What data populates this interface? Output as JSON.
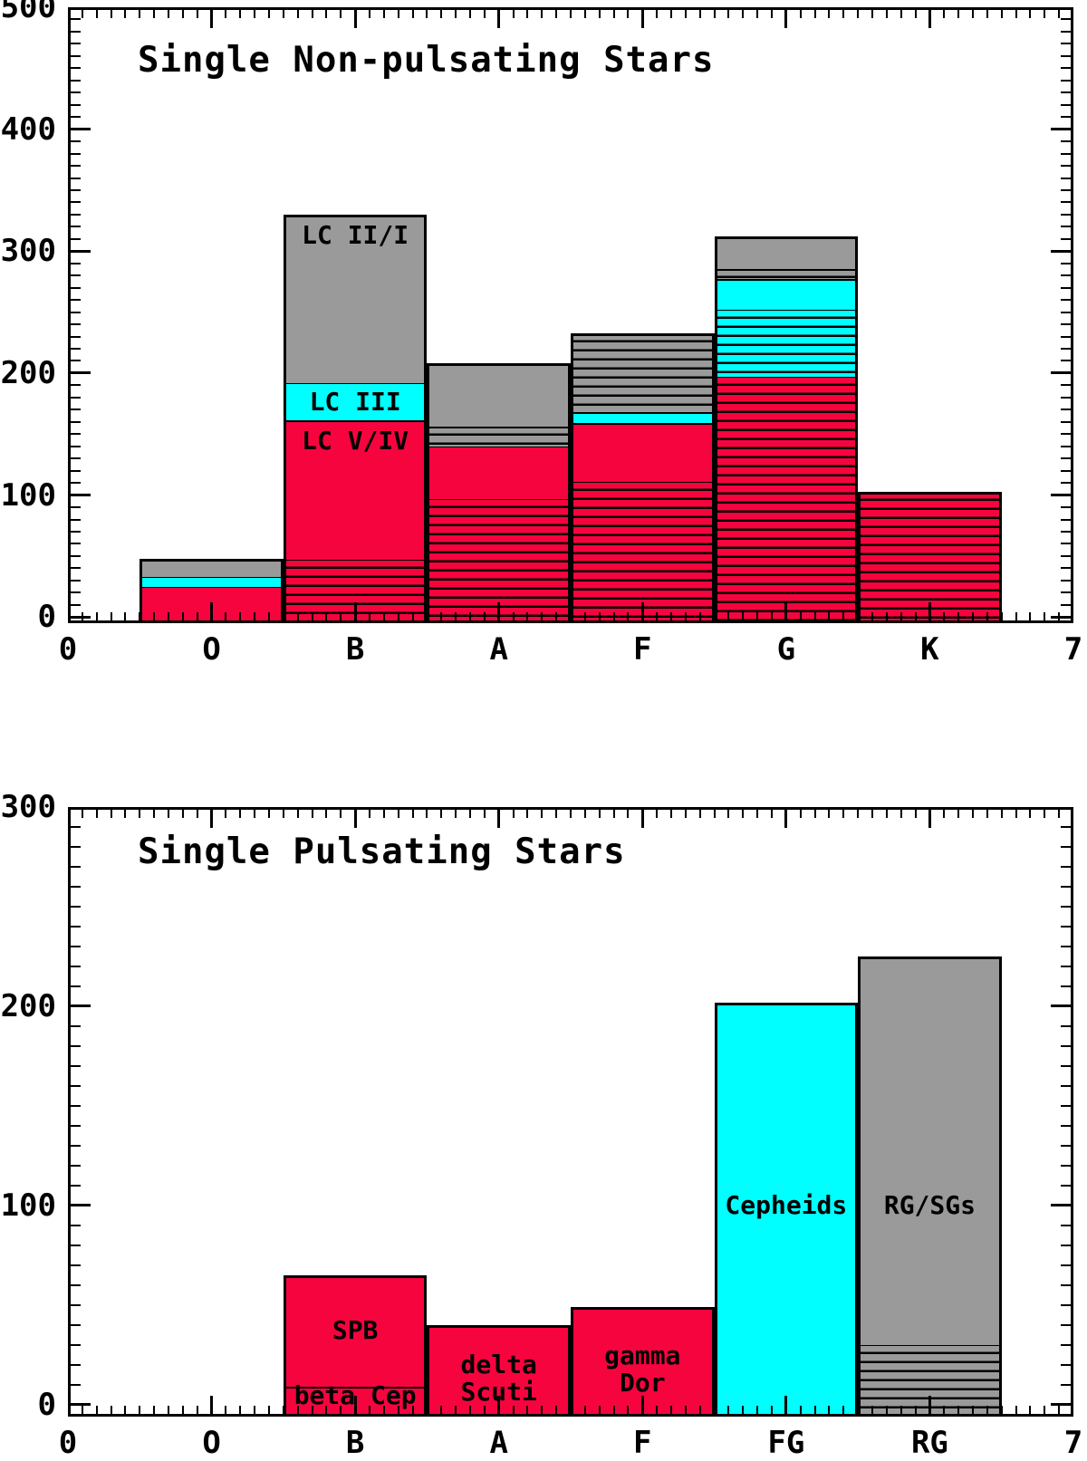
{
  "colors": {
    "red": "#F6043E",
    "cyan": "#00FFFF",
    "gray": "#9A9A9A",
    "line": "#000000",
    "background": "#FFFFFF"
  },
  "chart_data": [
    {
      "type": "bar",
      "stacked": true,
      "title": "Single Non-pulsating Stars",
      "xlabel": "",
      "ylabel": "",
      "xlim": [
        0,
        7
      ],
      "ylim": [
        0,
        500
      ],
      "grid": false,
      "y_major_ticks": [
        0,
        100,
        200,
        300,
        400,
        500
      ],
      "y_minor_step": 10,
      "x_minor_step": 0.1,
      "x_tick_labels": [
        {
          "pos": 0,
          "label": "0"
        },
        {
          "pos": 1,
          "label": "O"
        },
        {
          "pos": 2,
          "label": "B"
        },
        {
          "pos": 3,
          "label": "A"
        },
        {
          "pos": 4,
          "label": "F"
        },
        {
          "pos": 5,
          "label": "G"
        },
        {
          "pos": 6,
          "label": "K"
        },
        {
          "pos": 7,
          "label": "7"
        }
      ],
      "bars": [
        {
          "category": "O",
          "pos": 1,
          "total": 48,
          "segments": [
            {
              "name": "LC V/IV",
              "color": "red",
              "hatched": false,
              "value": 25
            },
            {
              "name": "LC III",
              "color": "cyan",
              "hatched": false,
              "value": 8
            },
            {
              "name": "LC II/I",
              "color": "gray",
              "hatched": false,
              "value": 15
            }
          ]
        },
        {
          "category": "B",
          "pos": 2,
          "total": 330,
          "segments": [
            {
              "name": "LC V/IV hatched",
              "color": "red",
              "hatched": true,
              "value": 47
            },
            {
              "name": "LC V/IV",
              "color": "red",
              "hatched": false,
              "value": 114,
              "label": "LC V/IV",
              "label_mode": "top"
            },
            {
              "name": "LC III",
              "color": "cyan",
              "hatched": false,
              "value": 31,
              "label": "LC III",
              "label_mode": "middle"
            },
            {
              "name": "LC II/I",
              "color": "gray",
              "hatched": false,
              "value": 138,
              "label": "LC II/I",
              "label_mode": "top"
            }
          ]
        },
        {
          "category": "A",
          "pos": 3,
          "total": 208,
          "segments": [
            {
              "name": "LC V/IV hatched",
              "color": "red",
              "hatched": true,
              "value": 97
            },
            {
              "name": "LC V/IV",
              "color": "red",
              "hatched": false,
              "value": 43
            },
            {
              "name": "LC II/I hatched",
              "color": "gray",
              "hatched": true,
              "value": 16
            },
            {
              "name": "LC II/I",
              "color": "gray",
              "hatched": false,
              "value": 52
            }
          ]
        },
        {
          "category": "F",
          "pos": 4,
          "total": 233,
          "segments": [
            {
              "name": "LC V/IV hatched",
              "color": "red",
              "hatched": true,
              "value": 111
            },
            {
              "name": "LC V/IV",
              "color": "red",
              "hatched": false,
              "value": 48
            },
            {
              "name": "LC III",
              "color": "cyan",
              "hatched": false,
              "value": 9
            },
            {
              "name": "LC II/I hatched",
              "color": "gray",
              "hatched": true,
              "value": 65
            }
          ]
        },
        {
          "category": "G",
          "pos": 5,
          "total": 312,
          "segments": [
            {
              "name": "LC V/IV hatched",
              "color": "red",
              "hatched": true,
              "value": 197
            },
            {
              "name": "LC III hatched",
              "color": "cyan",
              "hatched": true,
              "value": 55
            },
            {
              "name": "LC III",
              "color": "cyan",
              "hatched": false,
              "value": 25
            },
            {
              "name": "LC II/I hatched",
              "color": "gray",
              "hatched": true,
              "value": 8
            },
            {
              "name": "LC II/I",
              "color": "gray",
              "hatched": false,
              "value": 27
            }
          ]
        },
        {
          "category": "K",
          "pos": 6,
          "total": 103,
          "segments": [
            {
              "name": "LC V/IV hatched",
              "color": "red",
              "hatched": true,
              "value": 103
            }
          ]
        }
      ]
    },
    {
      "type": "bar",
      "stacked": true,
      "title": "Single Pulsating Stars",
      "xlabel": "",
      "ylabel": "",
      "xlim": [
        0,
        7
      ],
      "ylim": [
        0,
        300
      ],
      "grid": false,
      "y_major_ticks": [
        0,
        100,
        200,
        300
      ],
      "y_minor_step": 10,
      "x_minor_step": 0.1,
      "x_tick_labels": [
        {
          "pos": 0,
          "label": "0"
        },
        {
          "pos": 1,
          "label": "O"
        },
        {
          "pos": 2,
          "label": "B"
        },
        {
          "pos": 3,
          "label": "A"
        },
        {
          "pos": 4,
          "label": "F"
        },
        {
          "pos": 5,
          "label": "FG"
        },
        {
          "pos": 6,
          "label": "RG"
        },
        {
          "pos": 7,
          "label": "7"
        }
      ],
      "bars": [
        {
          "category": "B",
          "pos": 2,
          "total": 65,
          "segments": [
            {
              "name": "beta Cep",
              "color": "red",
              "hatched": false,
              "value": 9,
              "label": "beta Cep",
              "label_mode": "middle"
            },
            {
              "name": "SPB",
              "color": "red",
              "hatched": false,
              "value": 56,
              "label": "SPB",
              "label_mode": "middle"
            }
          ]
        },
        {
          "category": "A",
          "pos": 3,
          "total": 40,
          "segments": [
            {
              "name": "delta Scuti",
              "color": "red",
              "hatched": false,
              "value": 40,
              "label": "delta\nScuti",
              "label_mode": "middle"
            }
          ]
        },
        {
          "category": "F",
          "pos": 4,
          "total": 49,
          "segments": [
            {
              "name": "gamma Dor",
              "color": "red",
              "hatched": false,
              "value": 49,
              "label": "gamma\nDor",
              "label_mode": "middle"
            }
          ]
        },
        {
          "category": "FG",
          "pos": 5,
          "total": 202,
          "segments": [
            {
              "name": "Cepheids",
              "color": "cyan",
              "hatched": false,
              "value": 202,
              "label": "Cepheids",
              "label_mode": "value",
              "label_value": 100
            }
          ]
        },
        {
          "category": "RG",
          "pos": 6,
          "total": 225,
          "segments": [
            {
              "name": "RG/SGs hatched",
              "color": "gray",
              "hatched": true,
              "value": 30
            },
            {
              "name": "RG/SGs",
              "color": "gray",
              "hatched": false,
              "value": 195,
              "label": "RG/SGs",
              "label_mode": "value",
              "label_value": 100
            }
          ]
        }
      ]
    }
  ]
}
